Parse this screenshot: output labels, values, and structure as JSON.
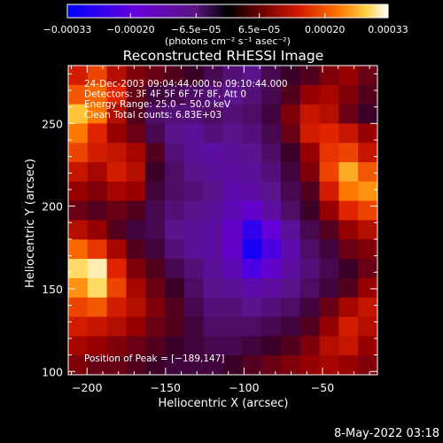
{
  "chart_data": {
    "type": "heatmap",
    "title": "Reconstructed RHESSI Image",
    "xlabel": "Heliocentric X (arcsec)",
    "ylabel": "Heliocentric Y (arcsec)",
    "xlim": [
      -212,
      -15
    ],
    "ylim": [
      98,
      285
    ],
    "x_ticks": [
      -200,
      -150,
      -100,
      -50
    ],
    "x_tick_labels": [
      "−200",
      "−150",
      "−100",
      "−50"
    ],
    "y_ticks": [
      100,
      150,
      200,
      250
    ],
    "y_tick_labels": [
      "100",
      "150",
      "200",
      "250"
    ],
    "colorbar": {
      "range": [
        -0.00033,
        0.00033
      ],
      "ticks": [
        -0.00033,
        -0.0002,
        -6.5e-05,
        6.5e-05,
        0.0002,
        0.00033
      ],
      "tick_labels": [
        "−0.00033",
        "−0.00020",
        "−6.5e−05",
        "6.5e−05",
        "0.00020",
        "0.00033"
      ],
      "units_label": "(photons cm⁻² s⁻¹ asec⁻²)"
    },
    "annotations": [
      "24-Dec-2003 09:04:44.000 to 09:10:44.000",
      "Detectors: 3F 4F 5F 6F 7F 8F, Att 0",
      "Energy Range: 25.0 − 50.0 keV",
      "Clean     Total counts: 6.83E+03",
      "Position of Peak = [−189,147]"
    ],
    "image": {
      "columns": 16,
      "rows": 16,
      "x_range": [
        -212,
        -15
      ],
      "y_range": [
        98,
        285
      ],
      "values_rows_top_to_bottom": [
        [
          0.4,
          0.55,
          0.3,
          0.15,
          0.1,
          0.05,
          0.0,
          -0.1,
          -0.2,
          -0.25,
          -0.1,
          0.0,
          0.05,
          0.15,
          0.2,
          0.1
        ],
        [
          0.6,
          0.65,
          0.45,
          0.1,
          -0.05,
          -0.1,
          -0.15,
          -0.2,
          -0.25,
          -0.2,
          -0.1,
          0.05,
          0.2,
          0.25,
          0.15,
          0.05
        ],
        [
          0.85,
          0.7,
          0.3,
          0.05,
          -0.15,
          -0.2,
          -0.2,
          -0.15,
          -0.2,
          -0.15,
          -0.05,
          0.15,
          0.35,
          0.3,
          0.1,
          0.0
        ],
        [
          0.7,
          0.45,
          0.2,
          0.1,
          -0.1,
          -0.25,
          -0.3,
          -0.2,
          -0.25,
          -0.2,
          -0.1,
          0.1,
          0.4,
          0.45,
          0.35,
          0.2
        ],
        [
          0.55,
          0.4,
          0.35,
          0.25,
          0.05,
          -0.2,
          -0.3,
          -0.35,
          -0.3,
          -0.25,
          -0.15,
          0.0,
          0.2,
          0.5,
          0.55,
          0.35
        ],
        [
          0.35,
          0.25,
          0.4,
          0.3,
          0.0,
          -0.15,
          -0.25,
          -0.3,
          -0.35,
          -0.3,
          -0.2,
          -0.05,
          0.15,
          0.55,
          0.8,
          0.6
        ],
        [
          0.2,
          0.15,
          0.25,
          0.2,
          -0.05,
          -0.15,
          -0.2,
          -0.25,
          -0.4,
          -0.35,
          -0.25,
          -0.1,
          0.05,
          0.4,
          0.7,
          0.75
        ],
        [
          0.1,
          0.05,
          0.1,
          0.05,
          -0.1,
          -0.2,
          -0.25,
          -0.3,
          -0.45,
          -0.55,
          -0.35,
          -0.15,
          0.0,
          0.2,
          0.45,
          0.55
        ],
        [
          0.3,
          0.2,
          0.05,
          -0.05,
          -0.1,
          -0.25,
          -0.3,
          -0.35,
          -0.55,
          -0.8,
          -0.6,
          -0.3,
          -0.1,
          0.05,
          0.2,
          0.3
        ],
        [
          0.65,
          0.5,
          0.25,
          0.05,
          -0.05,
          -0.2,
          -0.3,
          -0.35,
          -0.55,
          -0.9,
          -0.7,
          -0.4,
          -0.15,
          -0.05,
          0.1,
          0.15
        ],
        [
          0.9,
          0.95,
          0.45,
          0.15,
          0.05,
          -0.1,
          -0.2,
          -0.3,
          -0.45,
          -0.7,
          -0.55,
          -0.35,
          -0.2,
          -0.1,
          0.0,
          0.1
        ],
        [
          0.75,
          0.9,
          0.55,
          0.25,
          0.1,
          0.0,
          -0.15,
          -0.25,
          -0.3,
          -0.4,
          -0.35,
          -0.25,
          -0.15,
          -0.05,
          0.05,
          0.2
        ],
        [
          0.55,
          0.6,
          0.4,
          0.3,
          0.15,
          0.05,
          -0.1,
          -0.2,
          -0.2,
          -0.25,
          -0.2,
          -0.15,
          -0.05,
          0.1,
          0.25,
          0.35
        ],
        [
          0.4,
          0.35,
          0.3,
          0.2,
          0.1,
          0.05,
          -0.05,
          -0.15,
          -0.15,
          -0.15,
          -0.1,
          -0.05,
          0.05,
          0.2,
          0.4,
          0.3
        ],
        [
          0.25,
          0.2,
          0.15,
          0.1,
          0.05,
          0.0,
          -0.05,
          -0.1,
          -0.1,
          -0.05,
          0.0,
          0.05,
          0.15,
          0.3,
          0.35,
          0.2
        ],
        [
          0.15,
          0.1,
          0.1,
          0.05,
          0.0,
          -0.05,
          -0.05,
          -0.05,
          0.0,
          0.05,
          0.1,
          0.15,
          0.2,
          0.25,
          0.2,
          0.15
        ]
      ]
    }
  },
  "footer": {
    "timestamp": "8-May-2022 03:18"
  }
}
